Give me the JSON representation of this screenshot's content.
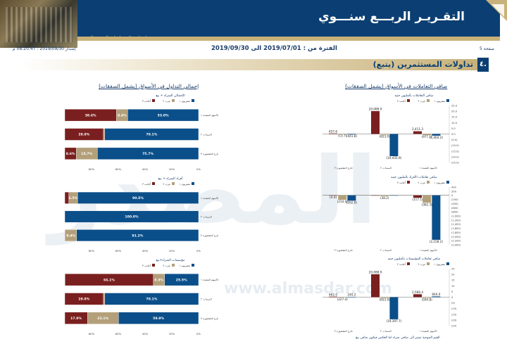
{
  "banner": {
    "title": "التقـريـر الربـــع سنـــوي",
    "subtitle": "إصدار مركز معلومات البورصة المصرية"
  },
  "period": {
    "text": "الفترة من : 2019/07/01 الى 2019/09/30",
    "issued": "إصدار 2019/09/30 : 08:20:47 م",
    "page": "صفحة 5"
  },
  "section": {
    "number": "٤.",
    "title": "تداولات المستثمرين  (يتبع)"
  },
  "left_header": "صافي التعاملات في الأسواق (يشمل الصفقات)",
  "right_header": "إجمالي التداول في الأسواق (يشمل الصفقات)",
  "watermark": {
    "logo": "المصدر",
    "url": "www.almasdar.com"
  },
  "footnote": "القيم الموجبة تشير الى صافي شراء اما العكس فيكون صافي بيع",
  "colors": {
    "egyptian": "#0b4f8a",
    "arab": "#b3a07a",
    "foreign": "#7a1f1f",
    "navy": "#0b3f73",
    "gold": "#c9b27a"
  },
  "chart_data": [
    {
      "type": "bar",
      "title": "صافي التعاملات بالمليون جنيه",
      "legend": [
        "مصريون ١",
        "عرب ٢",
        "أجانب ٣"
      ],
      "categories": [
        "الأسهم المقيدة ١",
        "السندات ٢",
        "خارج المقصورة ٣"
      ],
      "series": [
        {
          "name": "مصريون ١",
          "values": [
            -1464.2,
            -19435.9,
            -441.8
          ]
        },
        {
          "name": "عرب ٢",
          "values": [
            -977.1,
            -653.0,
            -15.7
          ]
        },
        {
          "name": "أجانب ٣",
          "values": [
            2411.3,
            20088.9,
            457.6
          ]
        }
      ],
      "labels": [
        [
          "(1,464.2)",
          "(19,435.9)",
          "(441.8)"
        ],
        [
          "(977.1)",
          "(653.0)",
          "(15.7)"
        ],
        [
          "2,411.3",
          "20,088.9",
          "457.6"
        ]
      ],
      "yticks": [
        "25.0",
        "20.0",
        "15.0",
        "10.0",
        "5.0",
        "0.0",
        "(5.0)",
        "(10.0)",
        "(15.0)",
        "(20.0)",
        "(25.0)"
      ],
      "ylim": [
        -25000,
        25000
      ]
    },
    {
      "type": "bar",
      "title": "صافي تعاملات الأفراد بالمليون جنيه",
      "legend": [
        "مصريون ١",
        "عرب ٢",
        "أجانب ٣"
      ],
      "categories": [
        "الأسهم المقيدة ١",
        "السندات ٢",
        "خارج المقصورة ٣"
      ],
      "series": [
        {
          "name": "مصريون ١",
          "values": [
            -2158.2,
            0,
            -262.0
          ]
        },
        {
          "name": "عرب ٢",
          "values": [
            -362.3,
            -38.2,
            -214.4
          ]
        },
        {
          "name": "أجانب ٣",
          "values": [
            -117.1,
            0,
            -4.4
          ]
        }
      ],
      "labels": [
        [
          "(2,158.2)",
          "",
          "(262.0)"
        ],
        [
          "(362.3)",
          "(38.2)",
          "(214.4)"
        ],
        [
          "(117.1)",
          "",
          "(4.4)"
        ]
      ],
      "yticks": [
        "400",
        "200",
        "0",
        "(200)",
        "(400)",
        "(600)",
        "(800)",
        "(1,000)",
        "(1,200)",
        "(1,400)",
        "(1,600)",
        "(1,800)",
        "(2,000)",
        "(2,200)",
        "(2,400)"
      ],
      "ylim": [
        -2400,
        400
      ]
    },
    {
      "type": "bar",
      "title": "صافي تعاملات المؤسسات بالمليون جنيه",
      "legend": [
        "مصريون ١",
        "عرب ٢",
        "أجانب ٣"
      ],
      "categories": [
        "الأسهم المقيدة ١",
        "السندات ٢",
        "خارج المقصورة ٣"
      ],
      "series": [
        {
          "name": "مصريون ١",
          "values": [
            664.0,
            -19397.7,
            240.2
          ]
        },
        {
          "name": "عرب ٢",
          "values": [
            -594.8,
            -653.0,
            -227.4
          ]
        },
        {
          "name": "أجانب ٣",
          "values": [
            2566.4,
            20088.9,
            462.0
          ]
        }
      ],
      "labels": [
        [
          "664.0",
          "(19,397.7)",
          "240.2"
        ],
        [
          "(594.8)",
          "(653.0)",
          "(227.4)"
        ],
        [
          "2,566.4",
          "20,088.9",
          "462.0"
        ]
      ],
      "yticks": [
        "25",
        "20",
        "15",
        "10",
        "5",
        "0",
        "(5)",
        "(10)",
        "(15)",
        "(20)",
        "(25)"
      ],
      "ylim": [
        -25000,
        25000
      ]
    },
    {
      "type": "bar",
      "orientation": "horizontal-stacked",
      "title": "الإجمالي الشراء + بيع",
      "legend": [
        "مصريون ١",
        "عرب ٢",
        "أجانب ٣"
      ],
      "categories": [
        "الأسهم المقيدة ١",
        "السندات ٢",
        "خارج المقصورة ٣"
      ],
      "series": [
        {
          "name": "مصريون ١",
          "values": [
            53.0,
            70.1,
            75.7
          ]
        },
        {
          "name": "عرب ٢",
          "values": [
            8.4,
            1.1,
            15.7
          ]
        },
        {
          "name": "أجانب ٣",
          "values": [
            38.6,
            28.8,
            8.6
          ]
        }
      ],
      "xticks": [
        "0%",
        "20%",
        "40%",
        "60%",
        "80%"
      ]
    },
    {
      "type": "bar",
      "orientation": "horizontal-stacked",
      "title": "أفراد الشراء + بيع",
      "legend": [
        "مصريون ١",
        "عرب ٢",
        "أجانب ٣"
      ],
      "categories": [
        "الأسهم المقيدة ١",
        "السندات ٢",
        "خارج المقصورة ٣"
      ],
      "series": [
        {
          "name": "مصريون ١",
          "values": [
            90.5,
            100.0,
            91.2
          ]
        },
        {
          "name": "عرب ٢",
          "values": [
            6.5,
            0,
            8.4
          ]
        },
        {
          "name": "أجانب ٣",
          "values": [
            3.0,
            0,
            0.4
          ]
        }
      ],
      "labels": [
        [
          "90.5%",
          "100.0%",
          "91.2%"
        ],
        [
          "6.5%",
          "",
          "8.4%"
        ],
        [
          "",
          "",
          ""
        ]
      ],
      "xticks": [
        "0%",
        "20%",
        "40%",
        "60%",
        "80%"
      ]
    },
    {
      "type": "bar",
      "orientation": "horizontal-stacked",
      "title": "مؤسسات الشراء+بيع",
      "legend": [
        "مصريون ١",
        "عرب ٢",
        "أجانب ٣"
      ],
      "categories": [
        "الأسهم المقيدة ١",
        "السندات ٢",
        "خارج المقصورة ٣"
      ],
      "series": [
        {
          "name": "مصريون ١",
          "values": [
            25.5,
            70.1,
            59.9
          ]
        },
        {
          "name": "عرب ٢",
          "values": [
            8.3,
            1.1,
            23.1
          ]
        },
        {
          "name": "أجانب ٣",
          "values": [
            66.1,
            28.8,
            17.0
          ]
        }
      ],
      "xticks": [
        "0%",
        "20%",
        "40%",
        "60%",
        "80%"
      ]
    }
  ]
}
